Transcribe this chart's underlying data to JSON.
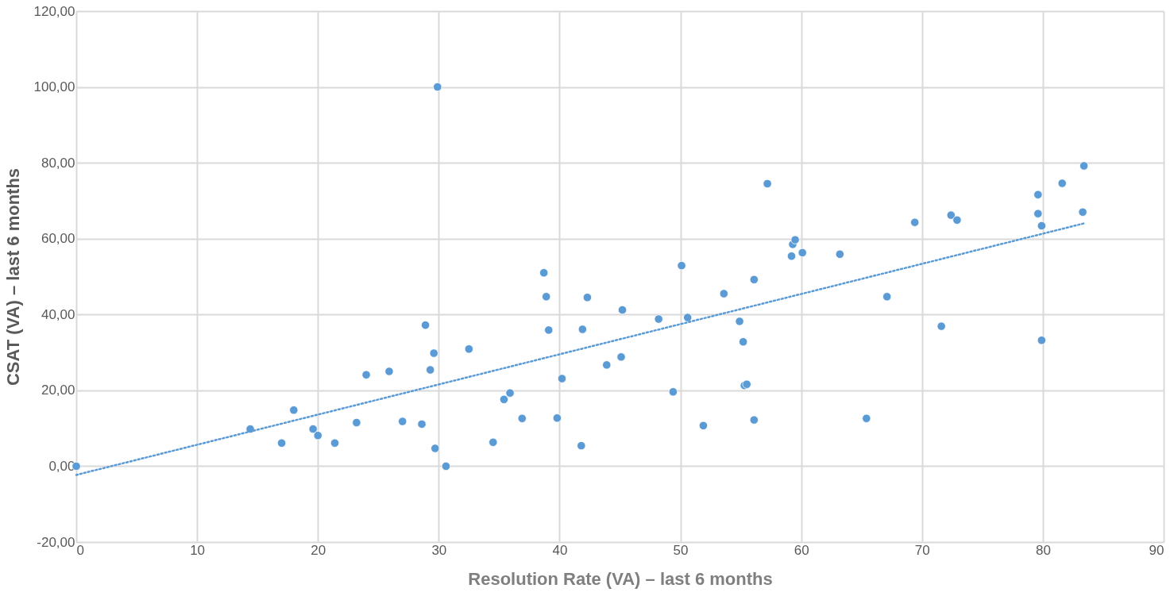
{
  "chart_data": {
    "type": "scatter",
    "xlabel": "Resolution Rate  (VA) – last 6 months",
    "ylabel": "CSAT (VA) – last 6 months",
    "xlim": [
      0,
      90
    ],
    "xticks": [
      0,
      10,
      20,
      30,
      40,
      50,
      60,
      70,
      80,
      90
    ],
    "ylim": [
      -20,
      120
    ],
    "yticks": [
      {
        "value": -20,
        "label": "-20,00"
      },
      {
        "value": 0,
        "label": "0,00"
      },
      {
        "value": 20,
        "label": "20,00"
      },
      {
        "value": 40,
        "label": "40,00"
      },
      {
        "value": 60,
        "label": "60,00"
      },
      {
        "value": 80,
        "label": "80,00"
      },
      {
        "value": 100,
        "label": "100,00"
      },
      {
        "value": 120,
        "label": "120,00"
      }
    ],
    "grid": true,
    "series": [
      {
        "type": "scatter",
        "color": "#5b9bd5",
        "marker": "circle",
        "x": [
          0,
          29.9,
          14.4,
          17.0,
          18.0,
          19.6,
          20.0,
          21.4,
          23.2,
          24.0,
          25.9,
          28.9,
          29.6,
          29.3,
          32.5,
          27.0,
          28.6,
          29.7,
          30.6,
          57.2,
          50.1,
          38.7,
          38.9,
          42.3,
          45.2,
          56.1,
          53.6,
          48.2,
          50.6,
          54.9,
          55.2,
          39.1,
          41.9,
          43.9,
          45.1,
          40.2,
          35.9,
          35.4,
          36.9,
          34.5,
          39.8,
          41.8,
          49.4,
          51.9,
          55.3,
          55.5,
          56.1,
          65.4,
          59.3,
          59.5,
          59.2,
          60.1,
          63.2,
          69.4,
          72.4,
          72.9,
          67.1,
          71.6,
          79.6,
          79.6,
          79.9,
          79.9,
          81.6,
          83.4,
          83.3
        ],
        "values": [
          0,
          100,
          9.8,
          6.1,
          14.8,
          9.8,
          8.1,
          6.1,
          11.5,
          24.1,
          25.0,
          37.2,
          29.8,
          25.4,
          30.9,
          11.8,
          11.1,
          4.7,
          0,
          74.5,
          52.9,
          51.0,
          44.7,
          44.5,
          41.2,
          49.2,
          45.5,
          38.8,
          39.2,
          38.2,
          32.8,
          35.9,
          36.1,
          26.7,
          28.8,
          23.1,
          19.3,
          17.6,
          12.6,
          6.3,
          12.7,
          5.4,
          19.6,
          10.7,
          21.3,
          21.6,
          12.2,
          12.6,
          58.5,
          59.7,
          55.4,
          56.3,
          55.9,
          64.3,
          66.2,
          64.9,
          44.7,
          36.9,
          71.6,
          66.6,
          63.4,
          33.2,
          74.6,
          79.2,
          67.0
        ]
      },
      {
        "type": "line",
        "color": "#5b9bd5",
        "line_style": "dotted",
        "marker": "none",
        "x": [
          0,
          83.5
        ],
        "values": [
          -2.3,
          64.1
        ]
      }
    ]
  }
}
